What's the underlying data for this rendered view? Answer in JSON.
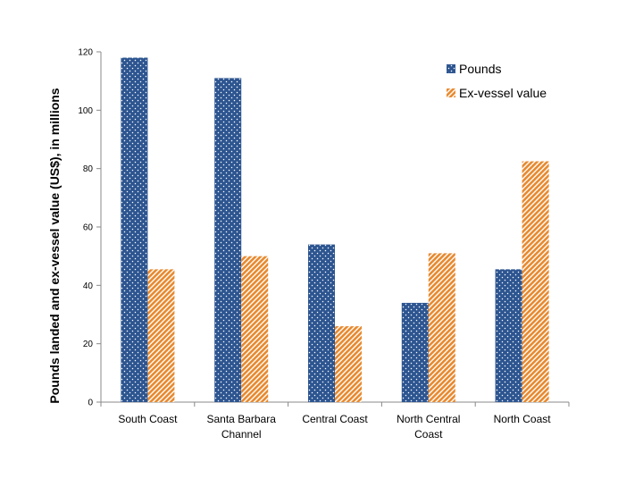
{
  "chart_data": {
    "type": "bar",
    "title": "",
    "xlabel": "",
    "ylabel": "Pounds landed and ex-vessel value (US$), in millions",
    "ylim": [
      0,
      120
    ],
    "yticks": [
      0,
      20,
      40,
      60,
      80,
      100,
      120
    ],
    "categories": [
      "South Coast",
      "Santa Barbara Channel",
      "Central Coast",
      "North Central Coast",
      "North Coast"
    ],
    "category_lines": [
      [
        "South Coast"
      ],
      [
        "Santa Barbara",
        "Channel"
      ],
      [
        "Central Coast"
      ],
      [
        "North Central",
        "Coast"
      ],
      [
        "North Coast"
      ]
    ],
    "series": [
      {
        "name": "Pounds",
        "values": [
          118,
          111,
          54,
          34,
          45.5
        ],
        "color": "#2d5590",
        "pattern": "dots"
      },
      {
        "name": "Ex-vessel value",
        "values": [
          45.5,
          50,
          26,
          51,
          82.5
        ],
        "color": "#e8892e",
        "pattern": "diagonal-stripes"
      }
    ],
    "legend": "top-right",
    "grid": false
  }
}
